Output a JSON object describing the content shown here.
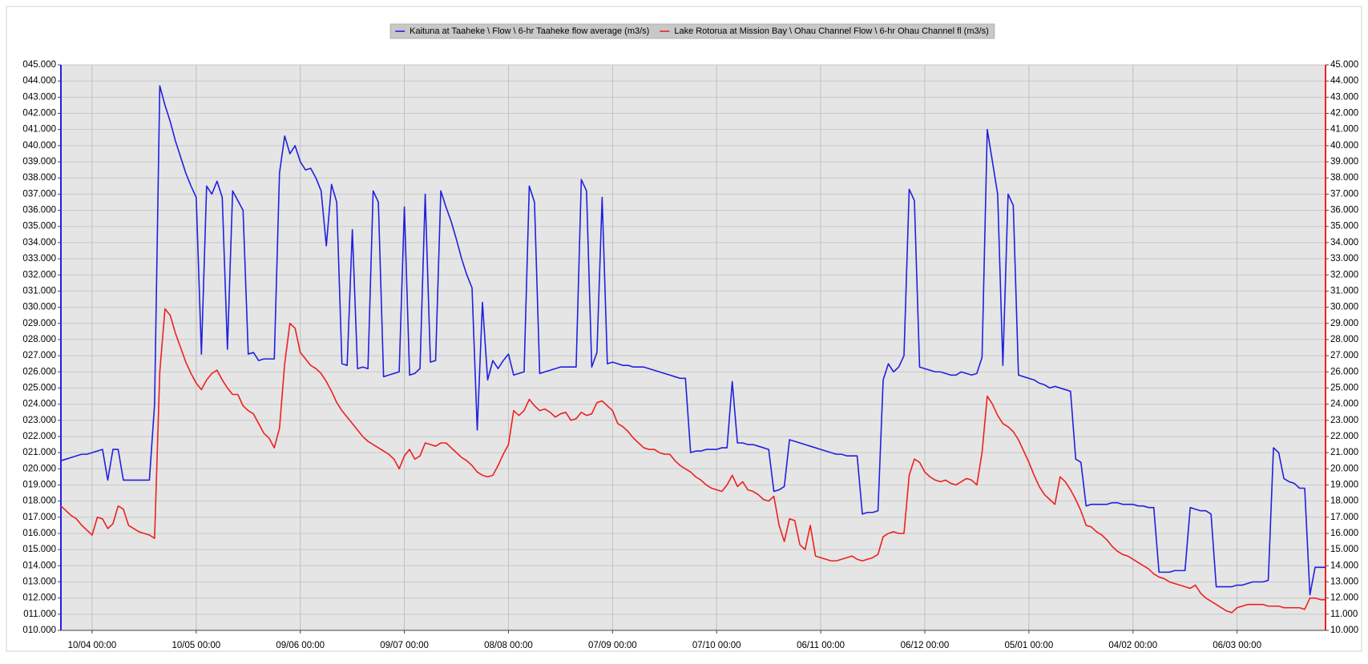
{
  "chart_data": {
    "type": "line",
    "legend": "top",
    "grid": true,
    "plot_background": "#e5e5e5",
    "categories": [
      null,
      null,
      null,
      null,
      null,
      null,
      "10/04 00:00",
      null,
      null,
      null,
      null,
      null,
      null,
      null,
      null,
      null,
      null,
      null,
      null,
      null,
      null,
      null,
      null,
      null,
      null,
      null,
      "10/05 00:00",
      null,
      null,
      null,
      null,
      null,
      null,
      null,
      null,
      null,
      null,
      null,
      null,
      null,
      null,
      null,
      null,
      null,
      null,
      null,
      "09/06 00:00",
      null,
      null,
      null,
      null,
      null,
      null,
      null,
      null,
      null,
      null,
      null,
      null,
      null,
      null,
      null,
      null,
      null,
      null,
      null,
      "09/07 00:00",
      null,
      null,
      null,
      null,
      null,
      null,
      null,
      null,
      null,
      null,
      null,
      null,
      null,
      null,
      null,
      null,
      null,
      null,
      null,
      "08/08 00:00",
      null,
      null,
      null,
      null,
      null,
      null,
      null,
      null,
      null,
      null,
      null,
      null,
      null,
      null,
      null,
      null,
      null,
      null,
      null,
      "07/09 00:00",
      null,
      null,
      null,
      null,
      null,
      null,
      null,
      null,
      null,
      null,
      null,
      null,
      null,
      null,
      null,
      null,
      null,
      null,
      null,
      "07/10 00:00",
      null,
      null,
      null,
      null,
      null,
      null,
      null,
      null,
      null,
      null,
      null,
      null,
      null,
      null,
      null,
      null,
      null,
      null,
      null,
      "06/11 00:00",
      null,
      null,
      null,
      null,
      null,
      null,
      null,
      null,
      null,
      null,
      null,
      null,
      null,
      null,
      null,
      null,
      null,
      null,
      null,
      "06/12 00:00",
      null,
      null,
      null,
      null,
      null,
      null,
      null,
      null,
      null,
      null,
      null,
      null,
      null,
      null,
      null,
      null,
      null,
      null,
      null,
      "05/01 00:00",
      null,
      null,
      null,
      null,
      null,
      null,
      null,
      null,
      null,
      null,
      null,
      null,
      null,
      null,
      null,
      null,
      null,
      null,
      null,
      "04/02 00:00",
      null,
      null,
      null,
      null,
      null,
      null,
      null,
      null,
      null,
      null,
      null,
      null,
      null,
      null,
      null,
      null,
      null,
      null,
      null,
      "06/03 00:00",
      null,
      null,
      null,
      null,
      null,
      null,
      null,
      null,
      null,
      null,
      null,
      null,
      null,
      null,
      null,
      null,
      null
    ],
    "series": [
      {
        "name": "Kaituna at Taaheke \\ Flow \\ 6-hr Taaheke flow average (m3/s)",
        "color": "#2020e0",
        "axis": "y",
        "values": [
          20.5,
          20.6,
          20.7,
          20.8,
          20.9,
          20.9,
          21.0,
          21.1,
          21.2,
          19.3,
          21.2,
          21.2,
          19.3,
          19.3,
          19.3,
          19.3,
          19.3,
          19.3,
          24,
          43.7,
          42.5,
          41.5,
          40.3,
          39.3,
          38.3,
          37.5,
          36.8,
          27.1,
          37.5,
          37.0,
          37.8,
          36.8,
          27.4,
          37.2,
          36.6,
          36.0,
          27.1,
          27.2,
          26.7,
          26.8,
          26.8,
          26.8,
          38.3,
          40.6,
          39.5,
          40.0,
          39.0,
          38.5,
          38.6,
          38.0,
          37.2,
          33.8,
          37.6,
          36.5,
          26.5,
          26.4,
          34.8,
          26.2,
          26.3,
          26.2,
          37.2,
          36.5,
          25.7,
          25.8,
          25.9,
          26.0,
          36.2,
          25.8,
          25.9,
          26.2,
          37.0,
          26.6,
          26.7,
          37.2,
          36.2,
          35.3,
          34.2,
          33.0,
          32.0,
          31.2,
          22.4,
          30.3,
          25.5,
          26.7,
          26.2,
          26.7,
          27.1,
          25.8,
          25.9,
          26.0,
          37.5,
          36.5,
          25.9,
          26.0,
          26.1,
          26.2,
          26.3,
          26.3,
          26.3,
          26.3,
          37.9,
          37.2,
          26.3,
          27.2,
          36.8,
          26.5,
          26.6,
          26.5,
          26.4,
          26.4,
          26.3,
          26.3,
          26.3,
          26.2,
          26.1,
          26.0,
          25.9,
          25.8,
          25.7,
          25.6,
          25.6,
          21.0,
          21.1,
          21.1,
          21.2,
          21.2,
          21.2,
          21.3,
          21.3,
          25.4,
          21.6,
          21.6,
          21.5,
          21.5,
          21.4,
          21.3,
          21.2,
          18.6,
          18.7,
          18.9,
          21.8,
          21.7,
          21.6,
          21.5,
          21.4,
          21.3,
          21.2,
          21.1,
          21.0,
          20.9,
          20.9,
          20.8,
          20.8,
          20.8,
          17.2,
          17.3,
          17.3,
          17.4,
          25.5,
          26.5,
          26.0,
          26.3,
          27.0,
          37.3,
          36.6,
          26.3,
          26.2,
          26.1,
          26.0,
          26.0,
          25.9,
          25.8,
          25.8,
          26.0,
          25.9,
          25.8,
          25.9,
          26.9,
          41.0,
          39.0,
          37.0,
          26.4,
          37.0,
          36.3,
          25.8,
          25.7,
          25.6,
          25.5,
          25.3,
          25.2,
          25.0,
          25.1,
          25.0,
          24.9,
          24.8,
          20.6,
          20.4,
          17.7,
          17.8,
          17.8,
          17.8,
          17.8,
          17.9,
          17.9,
          17.8,
          17.8,
          17.8,
          17.7,
          17.7,
          17.6,
          17.6,
          13.6,
          13.6,
          13.6,
          13.7,
          13.7,
          13.7,
          17.6,
          17.5,
          17.4,
          17.4,
          17.2,
          12.7,
          12.7,
          12.7,
          12.7,
          12.8,
          12.8,
          12.9,
          13.0,
          13.0,
          13.0,
          13.1,
          21.3,
          21.0,
          19.4,
          19.2,
          19.1,
          18.8,
          18.8,
          12.2,
          13.9,
          13.9,
          13.9
        ]
      },
      {
        "name": "Lake Rotorua at Mission Bay \\ Ohau Channel Flow \\ 6-hr Ohau Channel fl (m3/s)",
        "color": "#ee2020",
        "axis": "y2",
        "values": [
          17.7,
          17.4,
          17.1,
          16.9,
          16.5,
          16.2,
          15.9,
          17.0,
          16.9,
          16.3,
          16.6,
          17.7,
          17.5,
          16.5,
          16.3,
          16.1,
          16.0,
          15.9,
          15.7,
          26.0,
          29.9,
          29.5,
          28.4,
          27.5,
          26.6,
          25.9,
          25.3,
          24.9,
          25.5,
          25.9,
          26.1,
          25.5,
          25.0,
          24.6,
          24.6,
          23.9,
          23.6,
          23.4,
          22.8,
          22.2,
          21.9,
          21.3,
          22.5,
          26.5,
          29.0,
          28.7,
          27.2,
          26.8,
          26.4,
          26.2,
          25.9,
          25.4,
          24.8,
          24.1,
          23.6,
          23.2,
          22.8,
          22.4,
          22.0,
          21.7,
          21.5,
          21.3,
          21.1,
          20.9,
          20.6,
          20.0,
          20.8,
          21.2,
          20.6,
          20.8,
          21.6,
          21.5,
          21.4,
          21.6,
          21.6,
          21.3,
          21.0,
          20.7,
          20.5,
          20.2,
          19.8,
          19.6,
          19.5,
          19.6,
          20.2,
          20.9,
          21.5,
          23.6,
          23.3,
          23.6,
          24.3,
          23.9,
          23.6,
          23.7,
          23.5,
          23.2,
          23.4,
          23.5,
          23.0,
          23.1,
          23.5,
          23.3,
          23.4,
          24.1,
          24.2,
          23.9,
          23.6,
          22.8,
          22.6,
          22.3,
          21.9,
          21.6,
          21.3,
          21.2,
          21.2,
          21.0,
          20.9,
          20.9,
          20.5,
          20.2,
          20.0,
          19.8,
          19.5,
          19.3,
          19.0,
          18.8,
          18.7,
          18.6,
          19.0,
          19.6,
          18.9,
          19.2,
          18.7,
          18.6,
          18.4,
          18.1,
          18.0,
          18.3,
          16.5,
          15.5,
          16.9,
          16.8,
          15.3,
          15.0,
          16.5,
          14.6,
          14.5,
          14.4,
          14.3,
          14.3,
          14.4,
          14.5,
          14.6,
          14.4,
          14.3,
          14.4,
          14.5,
          14.7,
          15.8,
          16.0,
          16.1,
          16.0,
          16.0,
          19.6,
          20.6,
          20.4,
          19.8,
          19.5,
          19.3,
          19.2,
          19.3,
          19.1,
          19.0,
          19.2,
          19.4,
          19.3,
          19.0,
          21.0,
          24.5,
          24.0,
          23.3,
          22.8,
          22.6,
          22.3,
          21.8,
          21.1,
          20.4,
          19.6,
          18.9,
          18.4,
          18.1,
          17.8,
          19.5,
          19.2,
          18.7,
          18.1,
          17.4,
          16.5,
          16.4,
          16.1,
          15.9,
          15.6,
          15.2,
          14.9,
          14.7,
          14.6,
          14.4,
          14.2,
          14.0,
          13.8,
          13.5,
          13.3,
          13.2,
          13.0,
          12.9,
          12.8,
          12.7,
          12.6,
          12.8,
          12.3,
          12.0,
          11.8,
          11.6,
          11.4,
          11.2,
          11.1,
          11.4,
          11.5,
          11.6,
          11.6,
          11.6,
          11.6,
          11.5,
          11.5,
          11.5,
          11.4,
          11.4,
          11.4,
          11.4,
          11.3,
          12.0,
          12.0,
          11.9,
          11.9
        ]
      }
    ],
    "ylim": [
      10,
      45
    ],
    "yticks": [
      {
        "value": 10,
        "label": "010.000"
      },
      {
        "value": 11,
        "label": "011.000"
      },
      {
        "value": 12,
        "label": "012.000"
      },
      {
        "value": 13,
        "label": "013.000"
      },
      {
        "value": 14,
        "label": "014.000"
      },
      {
        "value": 15,
        "label": "015.000"
      },
      {
        "value": 16,
        "label": "016.000"
      },
      {
        "value": 17,
        "label": "017.000"
      },
      {
        "value": 18,
        "label": "018.000"
      },
      {
        "value": 19,
        "label": "019.000"
      },
      {
        "value": 20,
        "label": "020.000"
      },
      {
        "value": 21,
        "label": "021.000"
      },
      {
        "value": 22,
        "label": "022.000"
      },
      {
        "value": 23,
        "label": "023.000"
      },
      {
        "value": 24,
        "label": "024.000"
      },
      {
        "value": 25,
        "label": "025.000"
      },
      {
        "value": 26,
        "label": "026.000"
      },
      {
        "value": 27,
        "label": "027.000"
      },
      {
        "value": 28,
        "label": "028.000"
      },
      {
        "value": 29,
        "label": "029.000"
      },
      {
        "value": 30,
        "label": "030.000"
      },
      {
        "value": 31,
        "label": "031.000"
      },
      {
        "value": 32,
        "label": "032.000"
      },
      {
        "value": 33,
        "label": "033.000"
      },
      {
        "value": 34,
        "label": "034.000"
      },
      {
        "value": 35,
        "label": "035.000"
      },
      {
        "value": 36,
        "label": "036.000"
      },
      {
        "value": 37,
        "label": "037.000"
      },
      {
        "value": 38,
        "label": "038.000"
      },
      {
        "value": 39,
        "label": "039.000"
      },
      {
        "value": 40,
        "label": "040.000"
      },
      {
        "value": 41,
        "label": "041.000"
      },
      {
        "value": 42,
        "label": "042.000"
      },
      {
        "value": 43,
        "label": "043.000"
      },
      {
        "value": 44,
        "label": "044.000"
      },
      {
        "value": 45,
        "label": "045.000"
      }
    ],
    "y2lim": [
      10,
      45
    ],
    "y2ticks": [
      {
        "value": 10,
        "label": "10.000"
      },
      {
        "value": 11,
        "label": "11.000"
      },
      {
        "value": 12,
        "label": "12.000"
      },
      {
        "value": 13,
        "label": "13.000"
      },
      {
        "value": 14,
        "label": "14.000"
      },
      {
        "value": 15,
        "label": "15.000"
      },
      {
        "value": 16,
        "label": "16.000"
      },
      {
        "value": 17,
        "label": "17.000"
      },
      {
        "value": 18,
        "label": "18.000"
      },
      {
        "value": 19,
        "label": "19.000"
      },
      {
        "value": 20,
        "label": "20.000"
      },
      {
        "value": 21,
        "label": "21.000"
      },
      {
        "value": 22,
        "label": "22.000"
      },
      {
        "value": 23,
        "label": "23.000"
      },
      {
        "value": 24,
        "label": "24.000"
      },
      {
        "value": 25,
        "label": "25.000"
      },
      {
        "value": 26,
        "label": "26.000"
      },
      {
        "value": 27,
        "label": "27.000"
      },
      {
        "value": 28,
        "label": "28.000"
      },
      {
        "value": 29,
        "label": "29.000"
      },
      {
        "value": 30,
        "label": "30.000"
      },
      {
        "value": 31,
        "label": "31.000"
      },
      {
        "value": 32,
        "label": "32.000"
      },
      {
        "value": 33,
        "label": "33.000"
      },
      {
        "value": 34,
        "label": "34.000"
      },
      {
        "value": 35,
        "label": "35.000"
      },
      {
        "value": 36,
        "label": "36.000"
      },
      {
        "value": 37,
        "label": "37.000"
      },
      {
        "value": 38,
        "label": "38.000"
      },
      {
        "value": 39,
        "label": "39.000"
      },
      {
        "value": 40,
        "label": "40.000"
      },
      {
        "value": 41,
        "label": "41.000"
      },
      {
        "value": 42,
        "label": "42.000"
      },
      {
        "value": 43,
        "label": "43.000"
      },
      {
        "value": 44,
        "label": "44.000"
      },
      {
        "value": 45,
        "label": "45.000"
      }
    ]
  }
}
